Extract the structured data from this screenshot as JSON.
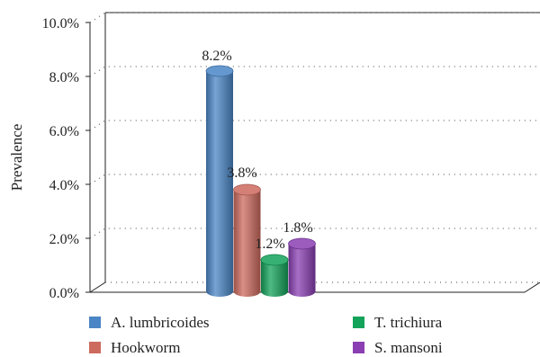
{
  "chart_data": {
    "type": "bar",
    "ylabel": "Prevalence",
    "ylim": [
      0,
      10
    ],
    "y_ticks": [
      "0.0%",
      "2.0%",
      "4.0%",
      "6.0%",
      "8.0%",
      "10.0%"
    ],
    "grid": true,
    "legend_position": "bottom",
    "series": [
      {
        "name": "A. lumbricoides",
        "value": 8.2,
        "label": "8.2%",
        "color": "#4a86c5"
      },
      {
        "name": "Hookworm",
        "value": 3.8,
        "label": "3.8%",
        "color": "#cc6a5e"
      },
      {
        "name": "T. trichiura",
        "value": 1.2,
        "label": "1.2%",
        "color": "#14a35a"
      },
      {
        "name": "S. mansoni",
        "value": 1.8,
        "label": "1.8%",
        "color": "#8a3fb2"
      }
    ]
  }
}
